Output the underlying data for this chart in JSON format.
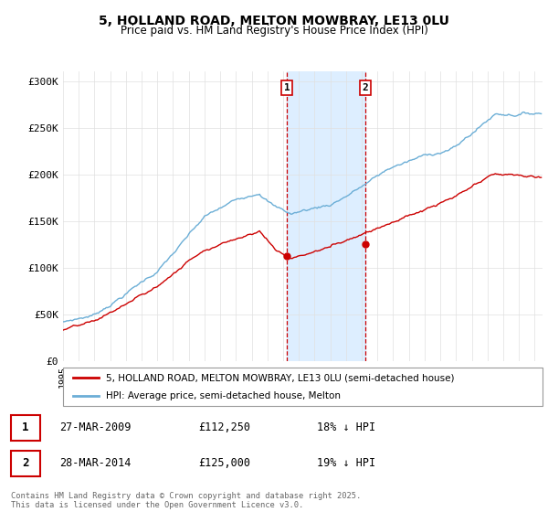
{
  "title": "5, HOLLAND ROAD, MELTON MOWBRAY, LE13 0LU",
  "subtitle": "Price paid vs. HM Land Registry's House Price Index (HPI)",
  "ylabel_ticks": [
    "£0",
    "£50K",
    "£100K",
    "£150K",
    "£200K",
    "£250K",
    "£300K"
  ],
  "ytick_values": [
    0,
    50000,
    100000,
    150000,
    200000,
    250000,
    300000
  ],
  "ylim": [
    0,
    310000
  ],
  "xlim_start": 1995.0,
  "xlim_end": 2025.5,
  "sale1_date": 2009.23,
  "sale1_price": 112250,
  "sale1_label": "1",
  "sale1_text": "27-MAR-2009",
  "sale1_amount": "£112,250",
  "sale1_hpi": "18% ↓ HPI",
  "sale2_date": 2014.23,
  "sale2_price": 125000,
  "sale2_label": "2",
  "sale2_text": "28-MAR-2014",
  "sale2_amount": "£125,000",
  "sale2_hpi": "19% ↓ HPI",
  "hpi_color": "#6baed6",
  "sale_color": "#cc0000",
  "shade_color": "#ddeeff",
  "legend1": "5, HOLLAND ROAD, MELTON MOWBRAY, LE13 0LU (semi-detached house)",
  "legend2": "HPI: Average price, semi-detached house, Melton",
  "footer": "Contains HM Land Registry data © Crown copyright and database right 2025.\nThis data is licensed under the Open Government Licence v3.0.",
  "background_color": "#ffffff",
  "grid_color": "#e0e0e0"
}
